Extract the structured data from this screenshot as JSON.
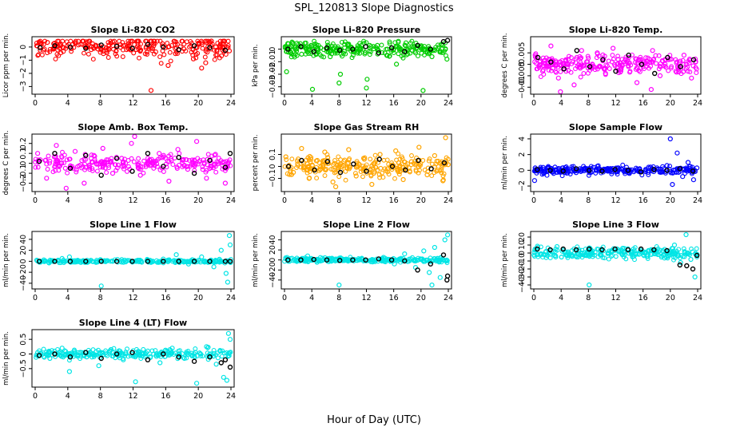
{
  "figure": {
    "title": "SPL_120813 Slope Diagnostics",
    "xlabel": "Hour of Day (UTC)"
  },
  "colors": {
    "overlay": "#000000",
    "red": "#ff0000",
    "green": "#00cc00",
    "magenta": "#ff00ff",
    "orange": "#ffa500",
    "blue": "#0000ff",
    "cyan": "#00e5e5"
  },
  "chart_data": [
    {
      "type": "scatter",
      "title": "Slope Li-820 CO2",
      "ylabel": "Licor ppm per min.",
      "xlim": [
        0,
        24
      ],
      "ylim": [
        -3.4,
        0.6
      ],
      "xticks": [
        0,
        4,
        8,
        12,
        16,
        20,
        24
      ],
      "yticks": [
        -3,
        -2,
        -1,
        0
      ],
      "series": [
        {
          "color": "red",
          "x": [
            0.2,
            1.5,
            3.0,
            4.6,
            6.1,
            7.7,
            9.3,
            10.8,
            12.4,
            14.0,
            15.6,
            17.2,
            18.6,
            19.4,
            20.1,
            20.9,
            21.6,
            22.3,
            23.1,
            23.8,
            14.2,
            16.3,
            20.4
          ],
          "y": [
            0.1,
            0.35,
            -0.1,
            0.2,
            0.05,
            -0.15,
            0.3,
            0.1,
            -0.2,
            0.05,
            0.25,
            -0.5,
            0.4,
            -0.9,
            0.3,
            -1.2,
            0.45,
            -0.6,
            0.2,
            -0.3,
            -3.3,
            -1.4,
            -1.6
          ]
        },
        {
          "color": "overlay",
          "x": [
            0.6,
            2.4,
            4.3,
            6.2,
            8.1,
            10.0,
            11.9,
            13.8,
            15.7,
            17.6,
            19.5,
            21.4,
            23.3
          ],
          "y": [
            -0.05,
            0.1,
            0.0,
            -0.1,
            0.15,
            0.05,
            -0.1,
            0.2,
            0.0,
            -0.2,
            0.1,
            -0.05,
            -0.25
          ]
        }
      ]
    },
    {
      "type": "scatter",
      "title": "Slope Li-820 Pressure",
      "ylabel": "kPa per min.",
      "xlim": [
        0,
        24
      ],
      "ylim": [
        -0.034,
        0.008
      ],
      "xticks": [
        0,
        4,
        8,
        12,
        16,
        20,
        24
      ],
      "yticks": [
        -0.03,
        -0.02,
        -0.01,
        0.0
      ],
      "series": [
        {
          "color": "green",
          "x": [
            0.1,
            0.3,
            1.2,
            2.5,
            3.9,
            4.1,
            5.3,
            6.7,
            8.0,
            8.2,
            9.4,
            10.8,
            12.0,
            12.1,
            13.6,
            15.0,
            16.4,
            17.8,
            19.2,
            20.3,
            21.6,
            23.0,
            23.8
          ],
          "y": [
            0.002,
            -0.018,
            0.005,
            -0.004,
            0.003,
            -0.032,
            0.001,
            -0.006,
            -0.027,
            -0.02,
            0.004,
            -0.002,
            -0.031,
            -0.024,
            0.003,
            -0.005,
            -0.012,
            0.005,
            -0.003,
            -0.033,
            -0.006,
            0.004,
            -0.008
          ]
        },
        {
          "color": "overlay",
          "x": [
            0.5,
            2.4,
            4.3,
            6.2,
            8.1,
            10.0,
            11.9,
            13.8,
            15.7,
            17.6,
            19.5,
            21.4,
            23.3,
            23.9
          ],
          "y": [
            0.0,
            0.002,
            -0.002,
            0.001,
            -0.001,
            0.0,
            0.002,
            -0.003,
            0.001,
            -0.002,
            0.003,
            0.0,
            0.006,
            0.007
          ]
        }
      ]
    },
    {
      "type": "scatter",
      "title": "Slope Li-820 Temp.",
      "ylabel": "degrees C per min.",
      "xlim": [
        0,
        24
      ],
      "ylim": [
        -0.012,
        0.011
      ],
      "xticks": [
        0,
        4,
        8,
        12,
        16,
        20,
        24
      ],
      "yticks": [
        -0.01,
        -0.005,
        0.0,
        0.005
      ],
      "series": [
        {
          "color": "magenta",
          "x": [
            0.2,
            1.3,
            2.5,
            3.6,
            4.7,
            5.9,
            7.0,
            8.2,
            9.3,
            10.5,
            11.6,
            12.8,
            13.9,
            15.1,
            16.2,
            17.4,
            18.5,
            19.7,
            20.8,
            22.0,
            23.1,
            3.9,
            17.2
          ],
          "y": [
            0.004,
            -0.003,
            0.008,
            -0.006,
            0.002,
            -0.009,
            0.006,
            -0.001,
            0.005,
            -0.004,
            0.007,
            -0.002,
            0.003,
            -0.008,
            0.001,
            0.006,
            -0.005,
            0.002,
            -0.003,
            0.004,
            -0.006,
            -0.012,
            -0.011
          ]
        },
        {
          "color": "overlay",
          "x": [
            0.6,
            2.5,
            4.4,
            6.3,
            8.2,
            10.1,
            12.0,
            13.9,
            15.8,
            17.7,
            19.6,
            21.5,
            23.4
          ],
          "y": [
            0.003,
            0.001,
            -0.002,
            0.006,
            -0.001,
            0.002,
            -0.003,
            0.004,
            0.0,
            -0.004,
            0.003,
            -0.001,
            0.002
          ]
        }
      ]
    },
    {
      "type": "scatter",
      "title": "Slope Amb. Box Temp.",
      "ylabel": "degrees C per min.",
      "xlim": [
        0,
        24
      ],
      "ylim": [
        -0.26,
        0.27
      ],
      "xticks": [
        0,
        4,
        8,
        12,
        16,
        20,
        24
      ],
      "yticks": [
        -0.2,
        -0.1,
        0.0,
        0.1,
        0.2
      ],
      "series": [
        {
          "color": "magenta",
          "x": [
            0.3,
            1.4,
            2.6,
            3.7,
            4.9,
            6.0,
            7.2,
            8.3,
            9.5,
            10.6,
            11.8,
            12.9,
            14.1,
            15.2,
            16.4,
            17.5,
            18.7,
            19.8,
            21.0,
            22.1,
            23.3,
            12.2,
            3.8
          ],
          "y": [
            0.1,
            -0.15,
            0.18,
            -0.05,
            0.12,
            -0.2,
            0.08,
            0.15,
            -0.1,
            0.05,
            0.2,
            -0.12,
            0.03,
            0.1,
            -0.18,
            0.14,
            -0.06,
            0.22,
            -0.15,
            0.09,
            -0.2,
            0.27,
            -0.25
          ]
        },
        {
          "color": "overlay",
          "x": [
            0.5,
            2.4,
            4.3,
            6.2,
            8.1,
            10.0,
            11.9,
            13.8,
            15.7,
            17.6,
            19.5,
            21.4,
            23.3,
            23.9
          ],
          "y": [
            0.02,
            0.1,
            -0.05,
            0.08,
            -0.12,
            0.05,
            -0.08,
            0.1,
            -0.03,
            0.06,
            -0.1,
            0.03,
            -0.04,
            0.1
          ]
        }
      ]
    },
    {
      "type": "scatter",
      "title": "Slope Gas Stream RH",
      "ylabel": "percent per min.",
      "xlim": [
        0,
        24
      ],
      "ylim": [
        -0.19,
        0.25
      ],
      "xticks": [
        0,
        4,
        8,
        12,
        16,
        20,
        24
      ],
      "yticks": [
        -0.1,
        0.0,
        0.1
      ],
      "series": [
        {
          "color": "orange",
          "x": [
            0.2,
            1.3,
            2.5,
            3.6,
            4.8,
            5.9,
            7.1,
            8.2,
            9.4,
            10.5,
            11.7,
            12.8,
            14.0,
            15.1,
            16.3,
            17.4,
            18.6,
            19.7,
            20.9,
            22.0,
            23.2,
            23.6,
            7.5
          ],
          "y": [
            0.08,
            -0.05,
            0.15,
            -0.1,
            0.05,
            0.12,
            -0.13,
            0.02,
            0.14,
            -0.08,
            0.06,
            -0.15,
            0.1,
            -0.02,
            0.13,
            -0.11,
            0.04,
            0.16,
            -0.07,
            0.09,
            -0.12,
            0.24,
            -0.17
          ]
        },
        {
          "color": "overlay",
          "x": [
            0.6,
            2.5,
            4.4,
            6.3,
            8.2,
            10.1,
            12.0,
            13.9,
            15.8,
            17.7,
            19.6,
            21.5,
            23.4
          ],
          "y": [
            0.0,
            0.05,
            -0.03,
            0.04,
            -0.05,
            0.02,
            -0.04,
            0.06,
            0.0,
            -0.03,
            0.05,
            -0.02,
            0.03
          ]
        }
      ]
    },
    {
      "type": "scatter",
      "title": "Slope Sample Flow",
      "ylabel": "ml/min per min.",
      "xlim": [
        0,
        24
      ],
      "ylim": [
        -2.4,
        4.3
      ],
      "xticks": [
        0,
        4,
        8,
        12,
        16,
        20,
        24
      ],
      "yticks": [
        -2,
        0,
        2,
        4
      ],
      "series": [
        {
          "color": "blue",
          "x": [
            0.2,
            1.6,
            3.1,
            4.7,
            6.2,
            7.8,
            9.3,
            10.9,
            12.4,
            14.0,
            15.5,
            17.1,
            18.6,
            19.5,
            20.0,
            20.3,
            21.0,
            21.8,
            22.6,
            23.4,
            23.9,
            0.1
          ],
          "y": [
            0.3,
            -0.2,
            0.4,
            0.1,
            -0.3,
            0.2,
            0.5,
            -0.1,
            0.3,
            -0.4,
            0.2,
            0.4,
            -0.2,
            0.6,
            4.0,
            -1.8,
            2.2,
            -0.8,
            1.0,
            -1.2,
            0.3,
            -1.3
          ]
        },
        {
          "color": "overlay",
          "x": [
            0.5,
            2.4,
            4.3,
            6.2,
            8.1,
            10.0,
            11.9,
            13.8,
            15.7,
            17.6,
            19.5,
            21.4,
            23.3
          ],
          "y": [
            0.1,
            0.0,
            -0.1,
            0.2,
            0.0,
            -0.1,
            0.1,
            0.0,
            -0.2,
            0.1,
            0.0,
            0.2,
            -0.1
          ]
        }
      ]
    },
    {
      "type": "scatter",
      "title": "Slope Line 1 Flow",
      "ylabel": "ml/min per min.",
      "xlim": [
        0,
        24
      ],
      "ylim": [
        -46,
        50
      ],
      "xticks": [
        0,
        4,
        8,
        12,
        16,
        20,
        24
      ],
      "yticks": [
        -40,
        -20,
        0,
        20,
        40
      ],
      "series": [
        {
          "color": "cyan",
          "x": [
            0.2,
            1.7,
            3.3,
            4.8,
            6.4,
            8.0,
            9.5,
            11.1,
            12.6,
            14.2,
            15.7,
            17.3,
            18.8,
            20.4,
            21.9,
            22.8,
            23.4,
            23.8,
            23.9,
            23.6,
            4.2,
            8.1
          ],
          "y": [
            2,
            -3,
            5,
            1,
            -2,
            3,
            0,
            -1,
            2,
            -2,
            4,
            12,
            -5,
            8,
            -10,
            20,
            -22,
            47,
            30,
            -38,
            8,
            -45
          ]
        },
        {
          "color": "overlay",
          "x": [
            0.5,
            2.4,
            4.3,
            6.2,
            8.1,
            10.0,
            11.9,
            13.8,
            15.7,
            17.6,
            19.5,
            21.4,
            23.3,
            23.9
          ],
          "y": [
            0,
            0,
            0,
            0,
            0,
            0,
            0,
            0,
            0,
            0,
            0,
            0,
            0,
            0
          ]
        }
      ]
    },
    {
      "type": "scatter",
      "title": "Slope Line 2 Flow",
      "ylabel": "ml/min per min.",
      "xlim": [
        0,
        24
      ],
      "ylim": [
        -53,
        52
      ],
      "xticks": [
        0,
        4,
        8,
        12,
        16,
        20,
        24
      ],
      "yticks": [
        -40,
        -20,
        0,
        20,
        40
      ],
      "series": [
        {
          "color": "cyan",
          "x": [
            0.2,
            1.8,
            3.4,
            5.0,
            6.6,
            8.1,
            9.7,
            11.3,
            12.9,
            14.5,
            16.1,
            17.6,
            19.2,
            20.4,
            21.2,
            22.0,
            22.8,
            23.5,
            23.9,
            8.0,
            21.6
          ],
          "y": [
            2,
            -3,
            8,
            -2,
            3,
            1,
            -1,
            2,
            -4,
            5,
            -8,
            12,
            -15,
            18,
            -25,
            25,
            -35,
            40,
            50,
            -50,
            -50
          ]
        },
        {
          "color": "overlay",
          "x": [
            0.5,
            2.4,
            4.3,
            6.2,
            8.1,
            10.0,
            11.9,
            13.8,
            15.7,
            17.6,
            19.5,
            21.4,
            23.3,
            23.9,
            23.8
          ],
          "y": [
            0,
            0,
            1,
            0,
            -1,
            0,
            0,
            2,
            0,
            -2,
            -20,
            -8,
            10,
            -32,
            -40
          ]
        }
      ]
    },
    {
      "type": "scatter",
      "title": "Slope Line 3 Flow",
      "ylabel": "ml/min per min.",
      "xlim": [
        0,
        24
      ],
      "ylim": [
        -42,
        24
      ],
      "xticks": [
        0,
        4,
        8,
        12,
        16,
        20,
        24
      ],
      "yticks": [
        -40,
        -30,
        -20,
        -10,
        0,
        10,
        20
      ],
      "series": [
        {
          "color": "cyan",
          "x": [
            0.2,
            1.8,
            3.4,
            5.0,
            6.6,
            8.2,
            9.8,
            11.4,
            13.0,
            14.6,
            16.2,
            17.8,
            19.4,
            20.6,
            21.5,
            22.3,
            23.0,
            23.6,
            23.9,
            8.1
          ],
          "y": [
            5,
            2,
            8,
            0,
            4,
            6,
            1,
            3,
            -2,
            5,
            0,
            2,
            -5,
            10,
            -12,
            23,
            -8,
            -30,
            -2,
            -40
          ]
        },
        {
          "color": "overlay",
          "x": [
            0.5,
            2.4,
            4.3,
            6.2,
            8.1,
            10.0,
            11.9,
            13.8,
            15.7,
            17.6,
            19.5,
            21.4,
            22.4,
            23.3,
            23.9
          ],
          "y": [
            5,
            4,
            5,
            4,
            5,
            4,
            5,
            4,
            5,
            4,
            3,
            -15,
            -16,
            -20,
            -3
          ]
        }
      ]
    },
    {
      "type": "scatter",
      "title": "Slope Line 4 (LT) Flow",
      "ylabel": "ml/min per min.",
      "xlim": [
        0,
        24
      ],
      "ylim": [
        -1.05,
        0.75
      ],
      "xticks": [
        0,
        4,
        8,
        12,
        16,
        20,
        24
      ],
      "yticks": [
        -0.5,
        0.0,
        0.5
      ],
      "series": [
        {
          "color": "cyan",
          "x": [
            0.3,
            1.8,
            3.3,
            4.2,
            4.8,
            6.3,
            7.8,
            9.3,
            10.8,
            12.3,
            13.8,
            15.3,
            16.8,
            18.3,
            19.8,
            21.0,
            22.2,
            23.1,
            23.7,
            23.9,
            23.5
          ],
          "y": [
            0.05,
            -0.15,
            0.2,
            -0.6,
            0.1,
            -0.1,
            -0.4,
            0.15,
            -0.2,
            -0.95,
            0.1,
            -0.3,
            0.2,
            -0.15,
            -1.0,
            0.25,
            -0.35,
            -0.8,
            0.7,
            0.5,
            -0.9
          ]
        },
        {
          "color": "overlay",
          "x": [
            0.5,
            2.4,
            4.3,
            6.2,
            8.1,
            10.0,
            11.9,
            13.8,
            15.7,
            17.6,
            19.5,
            21.4,
            22.8,
            23.3,
            23.9
          ],
          "y": [
            -0.05,
            0.0,
            -0.1,
            0.05,
            -0.15,
            0.0,
            0.05,
            -0.2,
            0.0,
            -0.1,
            -0.25,
            -0.1,
            -0.3,
            -0.2,
            -0.45
          ]
        }
      ]
    }
  ]
}
